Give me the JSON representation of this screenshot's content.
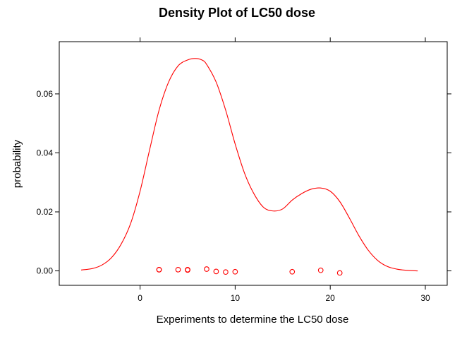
{
  "chart_data": {
    "type": "line",
    "title": "Density Plot of LC50 dose",
    "xlabel": "Experiments to determine the LC50 dose",
    "ylabel": "probability",
    "xlim": [
      -8.5,
      32.3
    ],
    "ylim": [
      -0.0049,
      0.0777
    ],
    "x_ticks": [
      0,
      10,
      20,
      30
    ],
    "x_tick_labels": [
      "0",
      "10",
      "20",
      "30"
    ],
    "y_ticks": [
      0.0,
      0.02,
      0.04,
      0.06
    ],
    "y_tick_labels": [
      "0.00",
      "0.02",
      "0.04",
      "0.06"
    ],
    "grid": false,
    "colors": {
      "density": "#ff0000",
      "points": "#ff0000",
      "axis": "#000000"
    },
    "series": [
      {
        "kind": "density-curve",
        "x": [
          -6.2,
          -5,
          -4,
          -3,
          -2,
          -1,
          0,
          1,
          2,
          3,
          4,
          5,
          5.8,
          6.5,
          7,
          8,
          9,
          10,
          11,
          12,
          13,
          14,
          15,
          16,
          17,
          18,
          19,
          20,
          21,
          22,
          23,
          24,
          25,
          26,
          27,
          28,
          29.2
        ],
        "y": [
          0.0003,
          0.0008,
          0.002,
          0.0045,
          0.009,
          0.016,
          0.027,
          0.041,
          0.0545,
          0.064,
          0.0695,
          0.0715,
          0.072,
          0.0715,
          0.07,
          0.064,
          0.0545,
          0.043,
          0.033,
          0.026,
          0.0215,
          0.0203,
          0.021,
          0.024,
          0.0262,
          0.0277,
          0.0281,
          0.027,
          0.0235,
          0.018,
          0.012,
          0.007,
          0.0035,
          0.0015,
          0.0006,
          0.0002,
          0.0
        ]
      },
      {
        "kind": "jittered-points",
        "x": [
          2,
          2,
          4,
          5,
          5,
          5,
          7,
          8,
          9,
          10,
          16,
          19,
          21
        ],
        "y": [
          0.0004,
          0.0004,
          0.0004,
          0.0004,
          0.0003,
          0.0003,
          0.0006,
          -0.0002,
          -0.0004,
          -0.0003,
          -0.0003,
          0.0002,
          -0.0007
        ]
      }
    ]
  }
}
